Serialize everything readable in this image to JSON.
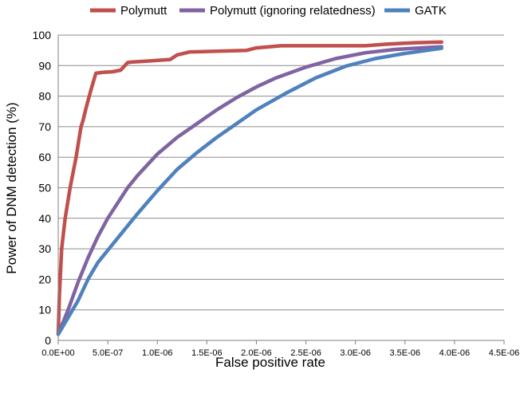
{
  "chart_data": {
    "type": "line",
    "xlabel": "False positive rate",
    "ylabel": "Power of DNM detection (%)",
    "xlim": [
      0,
      4.5e-06
    ],
    "ylim": [
      0,
      100
    ],
    "x_ticks": [
      0,
      5e-07,
      1e-06,
      1.5e-06,
      2e-06,
      2.5e-06,
      3e-06,
      3.5e-06,
      4e-06,
      4.5e-06
    ],
    "x_tick_labels": [
      "0.0E+00",
      "5.0E-07",
      "1.0E-06",
      "1.5E-06",
      "2.0E-06",
      "2.5E-06",
      "3.0E-06",
      "3.5E-06",
      "4.0E-06",
      "4.5E-06"
    ],
    "y_ticks": [
      0,
      10,
      20,
      30,
      40,
      50,
      60,
      70,
      80,
      90,
      100
    ],
    "y_tick_labels": [
      "0",
      "10",
      "20",
      "30",
      "40",
      "50",
      "60",
      "70",
      "80",
      "90",
      "100"
    ],
    "grid": "horizontal",
    "legend_position": "top",
    "series": [
      {
        "name": "Polymutt",
        "color": "#c0504d",
        "x": [
          0,
          1.2e-08,
          3.5e-08,
          7e-08,
          1.2e-07,
          1.8e-07,
          2.3e-07,
          2.5e-07,
          2.8e-07,
          3.3e-07,
          3.8e-07,
          4.5e-07,
          5.5e-07,
          6.3e-07,
          7e-07,
          7.5e-07,
          9e-07,
          1.13e-06,
          1.2e-06,
          1.33e-06,
          1.6e-06,
          1.9e-06,
          2e-06,
          2.25e-06,
          2.6e-06,
          3.1e-06,
          3.3e-06,
          3.6e-06,
          3.87e-06
        ],
        "values": [
          2,
          15,
          30,
          40,
          50,
          60,
          70,
          72,
          76,
          82,
          87.5,
          87.8,
          88,
          88.5,
          91,
          91.2,
          91.5,
          92,
          93.5,
          94.5,
          94.7,
          95,
          95.8,
          96.5,
          96.5,
          96.5,
          97,
          97.5,
          97.7
        ]
      },
      {
        "name": "Polymutt (ignoring relatedness)",
        "color": "#8064a2",
        "x": [
          0,
          1e-07,
          2e-07,
          3e-07,
          4e-07,
          5e-07,
          6e-07,
          7e-07,
          8e-07,
          9e-07,
          1e-06,
          1.2e-06,
          1.4e-06,
          1.6e-06,
          1.8e-06,
          2e-06,
          2.2e-06,
          2.5e-06,
          2.8e-06,
          3.1e-06,
          3.4e-06,
          3.87e-06
        ],
        "values": [
          2,
          10,
          19,
          27,
          34,
          40,
          45,
          50,
          54,
          57.5,
          61,
          66.5,
          71,
          75.5,
          79.5,
          83,
          86,
          89.5,
          92.3,
          94.2,
          95.3,
          96.2
        ]
      },
      {
        "name": "GATK",
        "color": "#4f81bd",
        "x": [
          0,
          1e-07,
          2e-07,
          3e-07,
          4e-07,
          5e-07,
          6e-07,
          8e-07,
          1e-06,
          1.2e-06,
          1.4e-06,
          1.6e-06,
          1.8e-06,
          2e-06,
          2.3e-06,
          2.6e-06,
          2.9e-06,
          3.2e-06,
          3.5e-06,
          3.87e-06
        ],
        "values": [
          2,
          7.5,
          13,
          20,
          25.5,
          29.5,
          33.5,
          41.5,
          49,
          56,
          61.5,
          66.5,
          71,
          75.5,
          81,
          86,
          89.8,
          92.3,
          94,
          95.7
        ]
      }
    ]
  }
}
